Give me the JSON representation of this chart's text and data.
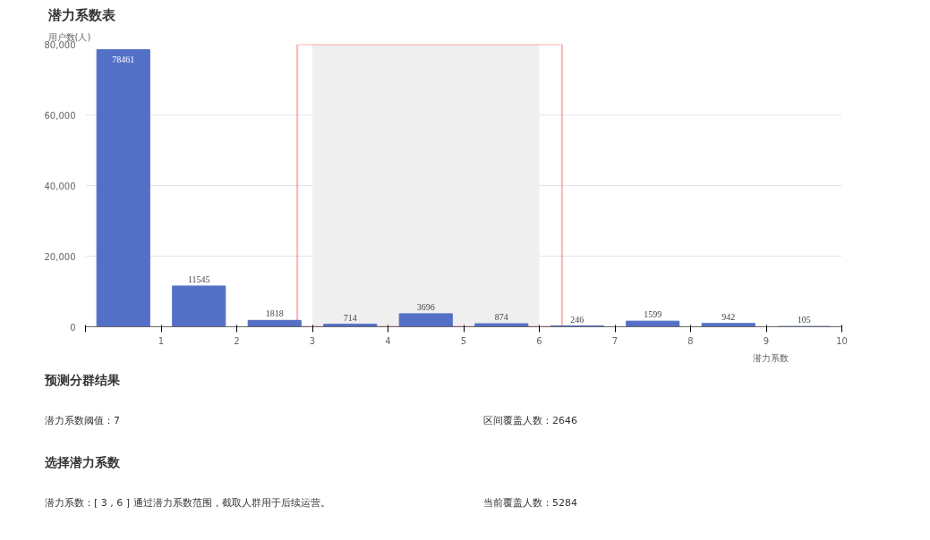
{
  "chart_data": {
    "type": "histogram",
    "title": "潜力系数表",
    "ylabel": "用户数(人)",
    "xlabel": "潜力系数",
    "bins": [
      0,
      1,
      2,
      3,
      4,
      5,
      6,
      7,
      8,
      9,
      10
    ],
    "values": [
      78461,
      11545,
      1818,
      714,
      3696,
      874,
      246,
      1599,
      942,
      105
    ],
    "color": "#5470c6",
    "data_labels": true,
    "xlim": [
      0,
      10
    ],
    "xticks": [
      {
        "value": 0,
        "label": null
      },
      1,
      2,
      3,
      4,
      5,
      6,
      7,
      8,
      9,
      10
    ],
    "ylim": [
      0,
      80000
    ],
    "yticks": [
      0,
      {
        "value": 20000,
        "label": "20,000"
      },
      {
        "value": 40000,
        "label": "40,000"
      },
      {
        "value": 60000,
        "label": "60,000"
      },
      {
        "value": 80000,
        "label": "80,000"
      }
    ],
    "grid": "y",
    "bands": [
      {
        "axis": "x",
        "from": 3,
        "to": 6,
        "color": "#efefef",
        "label": null
      }
    ],
    "annotations": [
      "预测分群结果",
      "潜力系数阈值：7",
      "区间覆盖人数：2646",
      "选择潜力系数",
      "潜力系数：[ 3 , 6 ]  通过潜力系数范围，截取人群用于后续运营。",
      "当前覆盖人数：5284"
    ]
  }
}
